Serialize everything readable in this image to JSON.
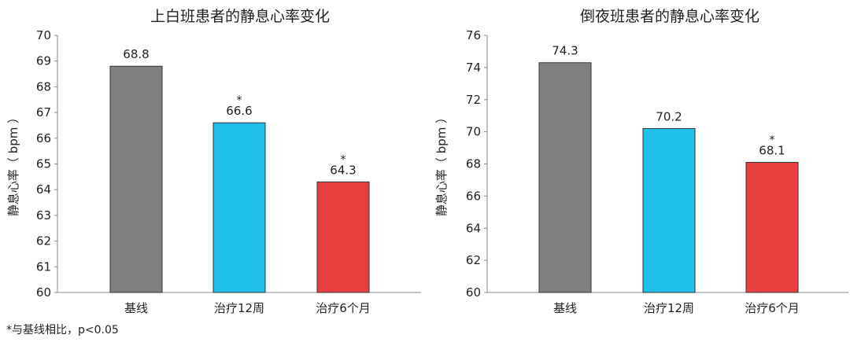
{
  "chart_data": [
    {
      "type": "bar",
      "title": "上白班患者的静息心率变化",
      "xlabel": "",
      "ylabel": "静息心率（ bpm ）",
      "categories": [
        "基线",
        "治疗12周",
        "治疗6个月"
      ],
      "values": [
        68.8,
        66.6,
        64.3
      ],
      "value_labels": [
        "68.8",
        "66.6",
        "64.3"
      ],
      "significance_marks": [
        "",
        "*",
        "*"
      ],
      "ylim": [
        60,
        70
      ],
      "yticks": [
        60,
        61,
        62,
        63,
        64,
        65,
        66,
        67,
        68,
        69,
        70
      ],
      "bar_colors": [
        "#808080",
        "#21C0EB",
        "#E84040"
      ],
      "grid": false
    },
    {
      "type": "bar",
      "title": "倒夜班患者的静息心率变化",
      "xlabel": "",
      "ylabel": "静息心率（ bpm ）",
      "categories": [
        "基线",
        "治疗12周",
        "治疗6个月"
      ],
      "values": [
        74.3,
        70.2,
        68.1
      ],
      "value_labels": [
        "74.3",
        "70.2",
        "68.1"
      ],
      "significance_marks": [
        "",
        "",
        "*"
      ],
      "ylim": [
        60,
        76
      ],
      "yticks": [
        60,
        62,
        64,
        66,
        68,
        70,
        72,
        74,
        76
      ],
      "bar_colors": [
        "#808080",
        "#21C0EB",
        "#E84040"
      ],
      "grid": false
    }
  ],
  "footnote": "*与基线相比，p<0.05"
}
